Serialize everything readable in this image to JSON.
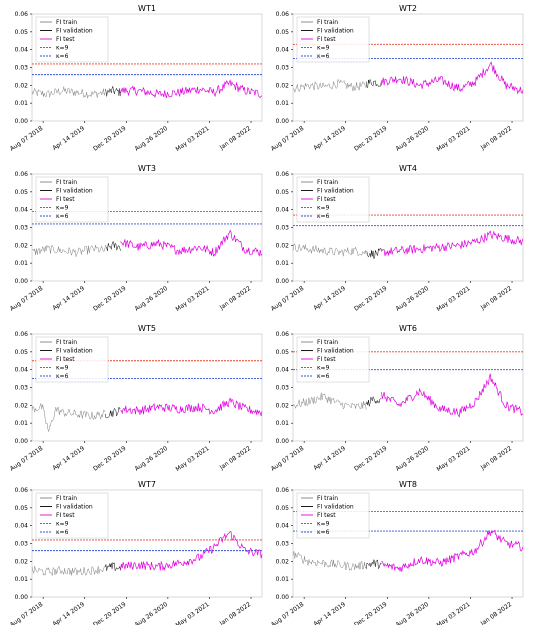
{
  "figure": {
    "x_tick_labels": [
      "Aug 07 2018",
      "Apr 14 2019",
      "Dec 20 2019",
      "Aug 26 2020",
      "May 03 2021",
      "Jan 08 2022"
    ],
    "y_tick_labels": [
      "0.00",
      "0.01",
      "0.02",
      "0.03",
      "0.04",
      "0.05",
      "0.06"
    ],
    "legend_labels": [
      "FI train",
      "FI validation",
      "FI test",
      "κ=9",
      "κ=6"
    ],
    "colors": {
      "train": "#7f7f7f",
      "validation": "#000000",
      "test": "#e000e0",
      "k9": "#e8402a",
      "k6": "#3050d8"
    }
  },
  "chart_data": [
    {
      "type": "line",
      "title": "WT1",
      "xlabel": "",
      "ylabel": "",
      "ylim": [
        0,
        0.06
      ],
      "x_start": "2018-06-01",
      "x_end": "2022-03-15",
      "thresholds": {
        "k9": 0.032,
        "k6": 0.026
      },
      "series": [
        {
          "name": "FI train",
          "x": [
            "2018-06-01",
            "2018-09-01",
            "2018-12-01",
            "2019-03-01",
            "2019-06-01",
            "2019-08-15"
          ],
          "y": [
            0.016,
            0.015,
            0.017,
            0.016,
            0.015,
            0.016
          ]
        },
        {
          "name": "FI validation",
          "x": [
            "2019-08-15",
            "2019-10-01",
            "2019-11-15"
          ],
          "y": [
            0.016,
            0.017,
            0.016
          ]
        },
        {
          "name": "FI test",
          "x": [
            "2019-11-15",
            "2020-03-01",
            "2020-07-01",
            "2020-11-01",
            "2021-03-01",
            "2021-06-01",
            "2021-09-01",
            "2021-12-01",
            "2022-03-15"
          ],
          "y": [
            0.017,
            0.017,
            0.015,
            0.016,
            0.018,
            0.016,
            0.021,
            0.017,
            0.015
          ]
        }
      ]
    },
    {
      "type": "line",
      "title": "WT2",
      "xlabel": "",
      "ylabel": "",
      "ylim": [
        0,
        0.06
      ],
      "x_start": "2018-06-01",
      "x_end": "2022-03-15",
      "thresholds": {
        "k9": 0.043,
        "k6": 0.035
      },
      "series": [
        {
          "name": "FI train",
          "x": [
            "2018-06-01",
            "2018-09-01",
            "2018-12-01",
            "2019-03-01",
            "2019-06-01",
            "2019-08-15"
          ],
          "y": [
            0.018,
            0.02,
            0.019,
            0.021,
            0.019,
            0.02
          ]
        },
        {
          "name": "FI validation",
          "x": [
            "2019-08-15",
            "2019-10-01",
            "2019-11-15"
          ],
          "y": [
            0.021,
            0.022,
            0.021
          ]
        },
        {
          "name": "FI test",
          "x": [
            "2019-11-15",
            "2020-03-01",
            "2020-07-01",
            "2020-11-01",
            "2021-03-01",
            "2021-06-01",
            "2021-09-01",
            "2021-12-01",
            "2022-03-15"
          ],
          "y": [
            0.022,
            0.024,
            0.02,
            0.023,
            0.018,
            0.022,
            0.032,
            0.02,
            0.017
          ]
        }
      ]
    },
    {
      "type": "line",
      "title": "WT3",
      "xlabel": "",
      "ylabel": "",
      "ylim": [
        0,
        0.06
      ],
      "x_start": "2018-06-01",
      "x_end": "2022-03-15",
      "thresholds": {
        "k9": 0.039,
        "k6": 0.032
      },
      "series": [
        {
          "name": "FI train",
          "x": [
            "2018-06-01",
            "2018-09-01",
            "2018-12-01",
            "2019-03-01",
            "2019-06-01",
            "2019-08-15"
          ],
          "y": [
            0.016,
            0.018,
            0.017,
            0.016,
            0.018,
            0.017
          ]
        },
        {
          "name": "FI validation",
          "x": [
            "2019-08-15",
            "2019-10-01",
            "2019-11-15"
          ],
          "y": [
            0.018,
            0.02,
            0.019
          ]
        },
        {
          "name": "FI test",
          "x": [
            "2019-11-15",
            "2020-03-01",
            "2020-07-01",
            "2020-11-01",
            "2021-03-01",
            "2021-06-01",
            "2021-09-01",
            "2021-12-01",
            "2022-03-15"
          ],
          "y": [
            0.022,
            0.019,
            0.021,
            0.017,
            0.019,
            0.016,
            0.027,
            0.018,
            0.016
          ]
        }
      ]
    },
    {
      "type": "line",
      "title": "WT4",
      "xlabel": "",
      "ylabel": "",
      "ylim": [
        0,
        0.06
      ],
      "x_start": "2018-06-01",
      "x_end": "2022-03-15",
      "thresholds": {
        "k9": 0.037,
        "k6": 0.031
      },
      "series": [
        {
          "name": "FI train",
          "x": [
            "2018-06-01",
            "2018-09-01",
            "2018-12-01",
            "2019-03-01",
            "2019-06-01",
            "2019-08-15"
          ],
          "y": [
            0.019,
            0.018,
            0.017,
            0.016,
            0.017,
            0.016
          ]
        },
        {
          "name": "FI validation",
          "x": [
            "2019-08-15",
            "2019-10-01",
            "2019-11-15"
          ],
          "y": [
            0.016,
            0.015,
            0.016
          ]
        },
        {
          "name": "FI test",
          "x": [
            "2019-11-15",
            "2020-03-01",
            "2020-07-01",
            "2020-11-01",
            "2021-03-01",
            "2021-06-01",
            "2021-09-01",
            "2021-12-01",
            "2022-03-15"
          ],
          "y": [
            0.016,
            0.017,
            0.018,
            0.019,
            0.02,
            0.022,
            0.026,
            0.024,
            0.022
          ]
        }
      ]
    },
    {
      "type": "line",
      "title": "WT5",
      "xlabel": "",
      "ylabel": "",
      "ylim": [
        0,
        0.06
      ],
      "x_start": "2018-06-01",
      "x_end": "2022-03-15",
      "thresholds": {
        "k9": 0.045,
        "k6": 0.035
      },
      "series": [
        {
          "name": "FI train",
          "x": [
            "2018-06-01",
            "2018-08-01",
            "2018-09-10",
            "2018-10-20",
            "2018-12-01",
            "2019-03-01",
            "2019-06-01",
            "2019-08-15"
          ],
          "y": [
            0.018,
            0.019,
            0.005,
            0.018,
            0.016,
            0.015,
            0.014,
            0.015
          ]
        },
        {
          "name": "FI validation",
          "x": [
            "2019-08-15",
            "2019-10-01",
            "2019-11-15"
          ],
          "y": [
            0.015,
            0.016,
            0.017
          ]
        },
        {
          "name": "FI test",
          "x": [
            "2019-11-15",
            "2020-03-01",
            "2020-07-01",
            "2020-11-01",
            "2021-03-01",
            "2021-06-01",
            "2021-09-01",
            "2021-12-01",
            "2022-03-15"
          ],
          "y": [
            0.018,
            0.017,
            0.019,
            0.018,
            0.019,
            0.017,
            0.022,
            0.018,
            0.016
          ]
        }
      ]
    },
    {
      "type": "line",
      "title": "WT6",
      "xlabel": "",
      "ylabel": "",
      "ylim": [
        0,
        0.06
      ],
      "x_start": "2018-06-01",
      "x_end": "2022-03-15",
      "thresholds": {
        "k9": 0.05,
        "k6": 0.04
      },
      "series": [
        {
          "name": "FI train",
          "x": [
            "2018-06-01",
            "2018-09-01",
            "2018-12-01",
            "2019-03-01",
            "2019-06-01",
            "2019-08-15"
          ],
          "y": [
            0.02,
            0.022,
            0.025,
            0.021,
            0.019,
            0.02
          ]
        },
        {
          "name": "FI validation",
          "x": [
            "2019-08-15",
            "2019-10-01",
            "2019-11-15"
          ],
          "y": [
            0.02,
            0.024,
            0.022
          ]
        },
        {
          "name": "FI test",
          "x": [
            "2019-11-15",
            "2020-03-01",
            "2020-07-01",
            "2020-11-01",
            "2021-03-01",
            "2021-06-01",
            "2021-09-01",
            "2021-12-01",
            "2022-03-15"
          ],
          "y": [
            0.026,
            0.02,
            0.028,
            0.018,
            0.016,
            0.022,
            0.036,
            0.02,
            0.016
          ]
        }
      ]
    },
    {
      "type": "line",
      "title": "WT7",
      "xlabel": "",
      "ylabel": "",
      "ylim": [
        0,
        0.06
      ],
      "x_start": "2018-06-01",
      "x_end": "2022-03-15",
      "thresholds": {
        "k9": 0.032,
        "k6": 0.026
      },
      "series": [
        {
          "name": "FI train",
          "x": [
            "2018-06-01",
            "2018-09-01",
            "2018-12-01",
            "2019-03-01",
            "2019-06-01",
            "2019-08-15"
          ],
          "y": [
            0.015,
            0.014,
            0.015,
            0.014,
            0.015,
            0.016
          ]
        },
        {
          "name": "FI validation",
          "x": [
            "2019-08-15",
            "2019-10-01",
            "2019-11-15"
          ],
          "y": [
            0.016,
            0.017,
            0.016
          ]
        },
        {
          "name": "FI test",
          "x": [
            "2019-11-15",
            "2020-03-01",
            "2020-07-01",
            "2020-11-01",
            "2021-03-01",
            "2021-06-01",
            "2021-09-01",
            "2021-12-01",
            "2022-03-15"
          ],
          "y": [
            0.017,
            0.018,
            0.017,
            0.019,
            0.022,
            0.028,
            0.036,
            0.026,
            0.024
          ]
        }
      ]
    },
    {
      "type": "line",
      "title": "WT8",
      "xlabel": "",
      "ylabel": "",
      "ylim": [
        0,
        0.06
      ],
      "x_start": "2018-06-01",
      "x_end": "2022-03-15",
      "thresholds": {
        "k9": 0.048,
        "k6": 0.037
      },
      "series": [
        {
          "name": "FI train",
          "x": [
            "2018-06-01",
            "2018-09-01",
            "2018-12-01",
            "2019-03-01",
            "2019-06-01",
            "2019-08-15"
          ],
          "y": [
            0.024,
            0.02,
            0.019,
            0.018,
            0.017,
            0.018
          ]
        },
        {
          "name": "FI validation",
          "x": [
            "2019-08-15",
            "2019-10-01",
            "2019-11-15"
          ],
          "y": [
            0.018,
            0.019,
            0.018
          ]
        },
        {
          "name": "FI test",
          "x": [
            "2019-11-15",
            "2020-03-01",
            "2020-07-01",
            "2020-11-01",
            "2021-03-01",
            "2021-06-01",
            "2021-09-01",
            "2021-12-01",
            "2022-03-15"
          ],
          "y": [
            0.018,
            0.016,
            0.021,
            0.019,
            0.023,
            0.026,
            0.037,
            0.03,
            0.028
          ]
        }
      ]
    }
  ]
}
